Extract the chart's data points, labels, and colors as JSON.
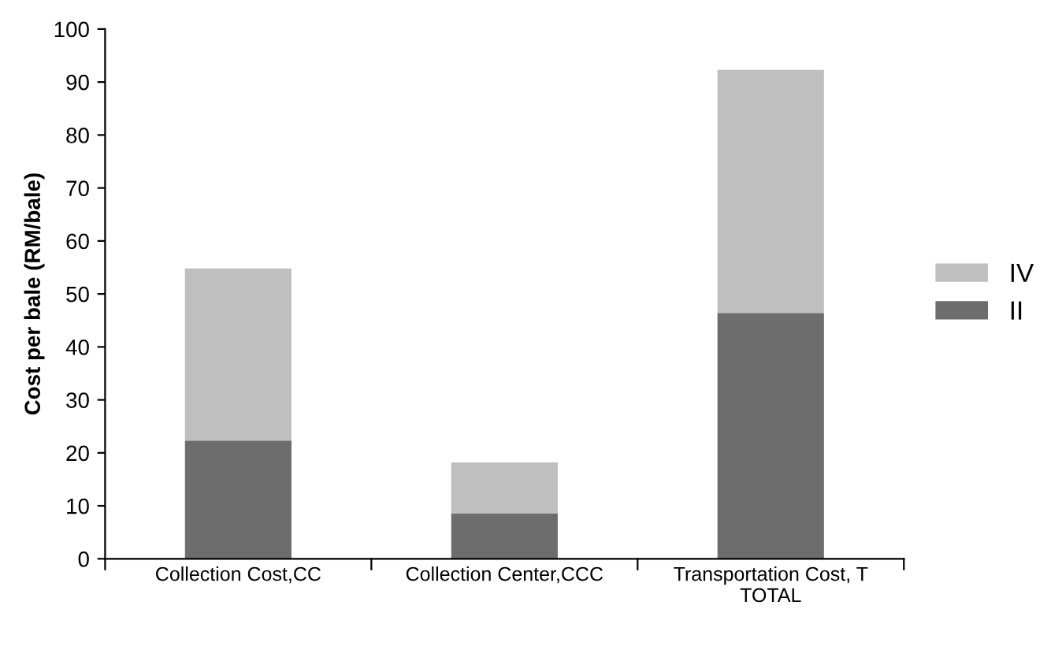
{
  "chart_data": {
    "type": "bar",
    "stacked": true,
    "ylabel": "Cost per bale (RM/bale)",
    "categories": [
      "Collection Cost,CC",
      "Collection Center,CCC",
      "Transportation Cost, T\nTOTAL"
    ],
    "series": [
      {
        "name": "II",
        "color": "#6d6d6d",
        "values": [
          22.3,
          8.6,
          46.4
        ]
      },
      {
        "name": "IV",
        "color": "#bfbfbf",
        "values": [
          32.5,
          9.6,
          45.9
        ]
      }
    ],
    "ylim": [
      0,
      100
    ],
    "yticks": [
      0,
      10,
      20,
      30,
      40,
      50,
      60,
      70,
      80,
      90,
      100
    ],
    "legend": "right",
    "grid": false
  }
}
